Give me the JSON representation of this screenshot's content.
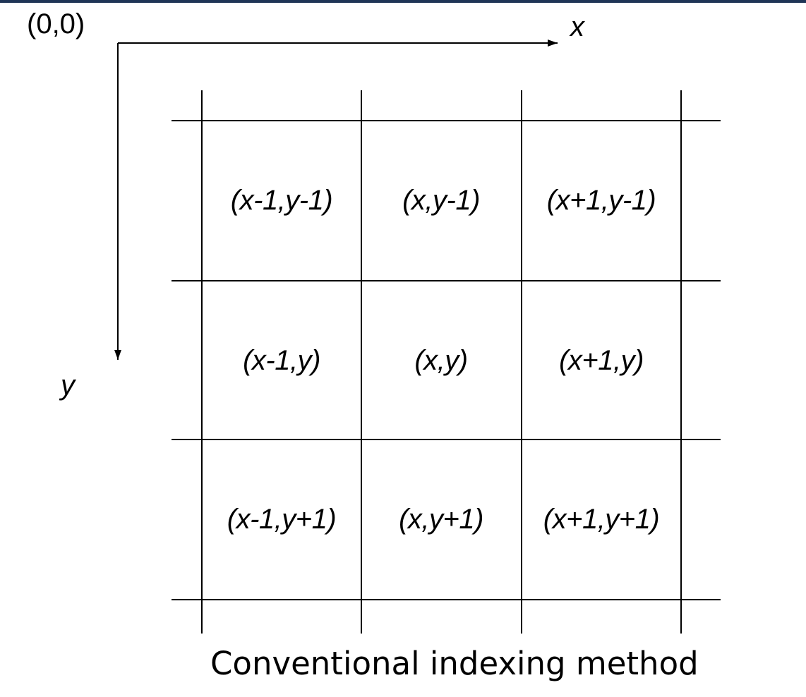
{
  "origin_label": "(0,0)",
  "x_axis_label": "x",
  "y_axis_label": "y",
  "grid": [
    [
      "(x-1,y-1)",
      "(x,y-1)",
      "(x+1,y-1)"
    ],
    [
      "(x-1,y)",
      "(x,y)",
      "(x+1,y)"
    ],
    [
      "(x-1,y+1)",
      "(x,y+1)",
      "(x+1,y+1)"
    ]
  ],
  "caption": "Conventional indexing method",
  "colors": {
    "top_bar": "#1f3556",
    "line": "#000000"
  }
}
